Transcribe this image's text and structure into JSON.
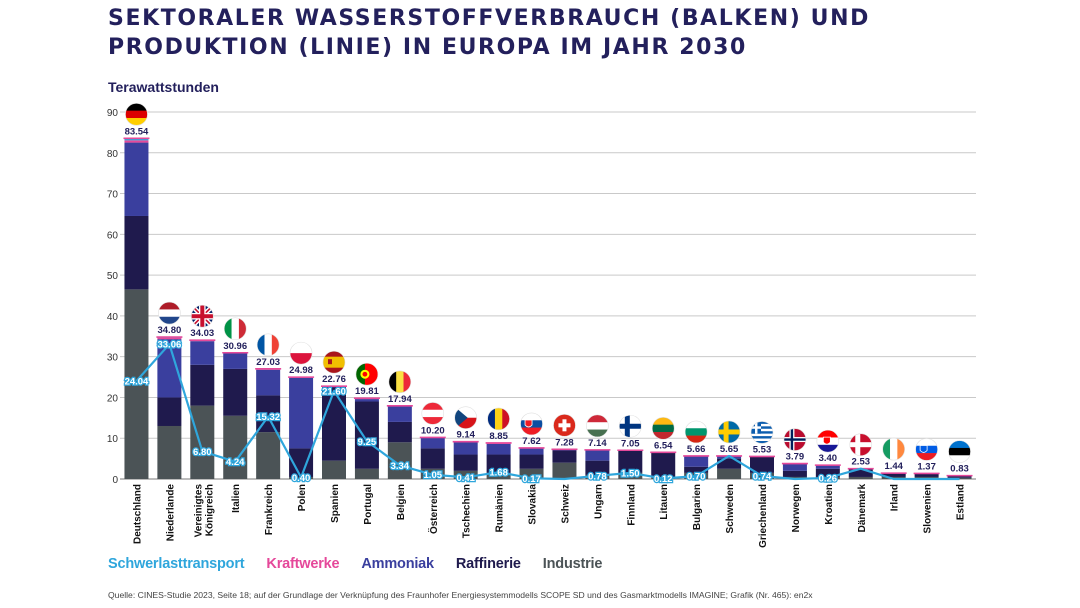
{
  "title": {
    "line1": "SEKTORALER WASSERSTOFFVERBRAUCH (BALKEN) UND",
    "line2": "PRODUKTION (LINIE) IN EUROPA IM JAHR 2030"
  },
  "source": "Quelle: CINES-Studie 2023, Seite 18; auf der Grundlage der Verknüpfung des Fraunhofer Energiesystemmodells SCOPE SD und des Gasmarktmodells IMAGINE; Grafik (Nr. 465): en2x",
  "chart_data": {
    "type": "bar",
    "stacked": true,
    "ylabel": "Terawattstunden",
    "ylim": [
      0,
      90
    ],
    "yticks": [
      0,
      10,
      20,
      30,
      40,
      50,
      60,
      70,
      80,
      90
    ],
    "grid": true,
    "legend_position": "bottom-left",
    "categories": [
      "Deutschland",
      "Niederlande",
      "Vereinigtes Königreich",
      "Italien",
      "Frankreich",
      "Polen",
      "Spanien",
      "Portugal",
      "Belgien",
      "Österreich",
      "Tschechien",
      "Rumänien",
      "Slovakia",
      "Schweiz",
      "Ungarn",
      "Finnland",
      "Litauen",
      "Bulgarien",
      "Schweden",
      "Griechenland",
      "Norwegen",
      "Kroatien",
      "Dänemark",
      "Irland",
      "Slowenien",
      "Estland"
    ],
    "category_display": [
      [
        "Deutschland"
      ],
      [
        "Niederlande"
      ],
      [
        "Vereinigtes",
        "Königreich"
      ],
      [
        "Italien"
      ],
      [
        "Frankreich"
      ],
      [
        "Polen"
      ],
      [
        "Spanien"
      ],
      [
        "Portugal"
      ],
      [
        "Belgien"
      ],
      [
        "Österreich"
      ],
      [
        "Tschechien"
      ],
      [
        "Rumänien"
      ],
      [
        "Slovakia"
      ],
      [
        "Schweiz"
      ],
      [
        "Ungarn"
      ],
      [
        "Finnland"
      ],
      [
        "Litauen"
      ],
      [
        "Bulgarien"
      ],
      [
        "Schweden"
      ],
      [
        "Griechenland"
      ],
      [
        "Norwegen"
      ],
      [
        "Kroatien"
      ],
      [
        "Dänemark"
      ],
      [
        "Irland"
      ],
      [
        "Slowenien"
      ],
      [
        "Estland"
      ]
    ],
    "total_labels": [
      "83.54",
      "34.80",
      "34.03",
      "30.96",
      "27.03",
      "24.98",
      "22.76",
      "19.81",
      "17.94",
      "10.20",
      "9.14",
      "8.85",
      "7.62",
      "7.28",
      "7.14",
      "7.05",
      "6.54",
      "5.66",
      "5.65",
      "5.53",
      "3.79",
      "3.40",
      "2.53",
      "1.44",
      "1.37",
      "0.83"
    ],
    "series": [
      {
        "name": "Industrie",
        "color": "#4b5356",
        "values": [
          46.5,
          13.0,
          18.0,
          15.5,
          11.5,
          0.5,
          4.5,
          2.5,
          9.0,
          2.5,
          2.0,
          1.5,
          2.5,
          4.0,
          1.0,
          1.5,
          0.5,
          1.5,
          2.5,
          1.5,
          0.5,
          0.5,
          0.5,
          0.5,
          0.5,
          0.3
        ]
      },
      {
        "name": "Raffinerie",
        "color": "#1f1a4d",
        "values": [
          18.0,
          7.0,
          10.0,
          11.5,
          9.0,
          7.0,
          18.0,
          16.5,
          5.0,
          5.0,
          4.0,
          4.5,
          3.5,
          3.0,
          3.5,
          5.5,
          6.0,
          1.5,
          2.5,
          4.0,
          1.5,
          2.0,
          2.0,
          0.9,
          0.8,
          0.5
        ]
      },
      {
        "name": "Ammoniak",
        "color": "#3a3f9e",
        "values": [
          18.0,
          14.3,
          5.8,
          3.8,
          6.3,
          17.3,
          0.1,
          0.6,
          3.8,
          2.6,
          3.0,
          2.6,
          1.5,
          0.2,
          2.6,
          0.0,
          0.0,
          2.6,
          0.6,
          0.0,
          1.7,
          0.8,
          0.0,
          0.0,
          0.0,
          0.0
        ]
      },
      {
        "name": "Kraftwerke",
        "color": "#e5489a",
        "values": [
          0.54,
          0.3,
          0.23,
          0.16,
          0.23,
          0.18,
          0.16,
          0.21,
          0.14,
          0.1,
          0.14,
          0.25,
          0.12,
          0.08,
          0.04,
          0.05,
          0.04,
          0.06,
          0.05,
          0.03,
          0.09,
          0.1,
          0.03,
          0.04,
          0.07,
          0.03
        ]
      },
      {
        "name": "Schwerlasttransport",
        "color": "#2fa6dc",
        "values": [
          0.5,
          0.2,
          0.0,
          0.0,
          0.0,
          0.0,
          0.0,
          0.0,
          0.0,
          0.0,
          0.0,
          0.0,
          0.0,
          0.0,
          0.0,
          0.0,
          0.0,
          0.0,
          0.0,
          0.0,
          0.0,
          0.0,
          0.0,
          0.0,
          0.0,
          0.0
        ]
      }
    ],
    "production_line": {
      "color": "#2fa6dc",
      "values": [
        24.04,
        33.06,
        6.8,
        4.24,
        15.32,
        0.4,
        21.6,
        9.25,
        3.34,
        1.05,
        0.41,
        1.68,
        0.17,
        0.0,
        0.78,
        1.5,
        0.12,
        0.7,
        5.65,
        0.74,
        0.0,
        0.26,
        2.53,
        0.0,
        0.0,
        0.0
      ],
      "labels": [
        "24.04",
        "33.06",
        "6.80",
        "4.24",
        "15.32",
        "0.40",
        "21.60",
        "9.25",
        "3.34",
        "1.05",
        "0.41",
        "1.68",
        "0.17",
        "",
        "0.78",
        "1.50",
        "0.12",
        "0.70",
        "",
        "0.74",
        "",
        "0.26",
        "",
        "",
        "",
        ""
      ]
    },
    "legend_order": [
      "Schwerlasttransport",
      "Kraftwerke",
      "Ammoniak",
      "Raffinerie",
      "Industrie"
    ],
    "flags": [
      "flag-germany-icon",
      "flag-netherlands-icon",
      "flag-united-kingdom-icon",
      "flag-italy-icon",
      "flag-france-icon",
      "flag-poland-icon",
      "flag-spain-icon",
      "flag-portugal-icon",
      "flag-belgium-icon",
      "flag-austria-icon",
      "flag-czechia-icon",
      "flag-romania-icon",
      "flag-slovakia-icon",
      "flag-switzerland-icon",
      "flag-hungary-icon",
      "flag-finland-icon",
      "flag-lithuania-icon",
      "flag-bulgaria-icon",
      "flag-sweden-icon",
      "flag-greece-icon",
      "flag-norway-icon",
      "flag-croatia-icon",
      "flag-denmark-icon",
      "flag-ireland-icon",
      "flag-slovenia-icon",
      "flag-estonia-icon"
    ]
  }
}
